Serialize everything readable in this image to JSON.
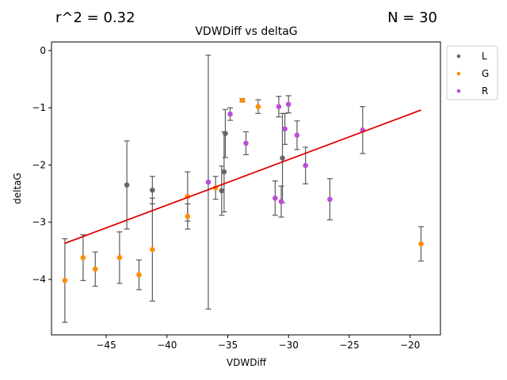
{
  "chart_data": {
    "type": "scatter",
    "title": "VDWDiff vs deltaG",
    "annotations": {
      "r2": "r^2 = 0.32",
      "n": "N = 30"
    },
    "xlabel": "VDWDiff",
    "ylabel": "deltaG",
    "xlim": [
      -49.5,
      -17.5
    ],
    "ylim": [
      -4.97,
      0.15
    ],
    "xticks": [
      -45,
      -40,
      -35,
      -30,
      -25,
      -20
    ],
    "yticks": [
      0,
      -1,
      -2,
      -3,
      -4
    ],
    "xtick_labels": [
      "−45",
      "−40",
      "−35",
      "−30",
      "−25",
      "−20"
    ],
    "ytick_labels": [
      "0",
      "−1",
      "−2",
      "−3",
      "−4"
    ],
    "legend_position": "outside-right-top",
    "series": [
      {
        "name": "L",
        "color": "#666666",
        "points": [
          {
            "x": -43.3,
            "y": -2.35,
            "err": 0.77
          },
          {
            "x": -41.2,
            "y": -2.44,
            "err": 0.24
          },
          {
            "x": -35.5,
            "y": -2.45,
            "err": 0.43
          },
          {
            "x": -35.3,
            "y": -2.12,
            "err": 0.7
          },
          {
            "x": -35.2,
            "y": -1.45,
            "err": 0.42
          },
          {
            "x": -30.5,
            "y": -1.88,
            "err": 0.78
          }
        ]
      },
      {
        "name": "G",
        "color": "#ff8c00",
        "points": [
          {
            "x": -48.4,
            "y": -4.02,
            "err": 0.73
          },
          {
            "x": -46.9,
            "y": -3.62,
            "err": 0.4
          },
          {
            "x": -45.9,
            "y": -3.82,
            "err": 0.3
          },
          {
            "x": -43.9,
            "y": -3.62,
            "err": 0.45
          },
          {
            "x": -42.3,
            "y": -3.92,
            "err": 0.26
          },
          {
            "x": -41.2,
            "y": -3.48,
            "err": 0.9
          },
          {
            "x": -38.3,
            "y": -2.9,
            "err": 0.22
          },
          {
            "x": -38.3,
            "y": -2.55,
            "err": 0.43
          },
          {
            "x": -36.0,
            "y": -2.4,
            "err": 0.2
          },
          {
            "x": -33.8,
            "y": -0.87,
            "err": 0.03
          },
          {
            "x": -32.5,
            "y": -0.98,
            "err": 0.12
          },
          {
            "x": -19.1,
            "y": -3.38,
            "err": 0.3
          }
        ]
      },
      {
        "name": "R",
        "color": "#b94fd6",
        "points": [
          {
            "x": -36.6,
            "y": -2.3,
            "err": 2.22
          },
          {
            "x": -34.8,
            "y": -1.11,
            "err": 0.11
          },
          {
            "x": -33.5,
            "y": -1.62,
            "err": 0.2
          },
          {
            "x": -31.1,
            "y": -2.58,
            "err": 0.3
          },
          {
            "x": -30.8,
            "y": -0.98,
            "err": 0.18
          },
          {
            "x": -30.6,
            "y": -2.64,
            "err": 0.27
          },
          {
            "x": -30.3,
            "y": -1.37,
            "err": 0.27
          },
          {
            "x": -30.0,
            "y": -0.94,
            "err": 0.15
          },
          {
            "x": -29.3,
            "y": -1.48,
            "err": 0.25
          },
          {
            "x": -28.6,
            "y": -2.01,
            "err": 0.32
          },
          {
            "x": -26.6,
            "y": -2.6,
            "err": 0.36
          },
          {
            "x": -23.9,
            "y": -1.39,
            "err": 0.41
          }
        ]
      }
    ],
    "fit_line": {
      "color": "#e00000",
      "x": [
        -48.4,
        -19.1
      ],
      "y": [
        -3.37,
        -1.04
      ]
    }
  }
}
